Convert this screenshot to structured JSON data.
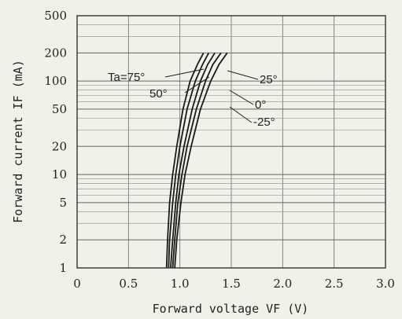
{
  "chart_data": {
    "type": "line",
    "xlabel": "Forward voltage VF (V)",
    "ylabel": "Forward current IF (mA)",
    "xlim": [
      0,
      3.0
    ],
    "ylim": [
      1,
      500
    ],
    "y_scale": "log",
    "grid": true,
    "x_ticks": [
      "0",
      "0.5",
      "1.0",
      "1.5",
      "2.0",
      "2.5",
      "3.0"
    ],
    "y_ticks": [
      "1",
      "2",
      "5",
      "10",
      "20",
      "50",
      "100",
      "200",
      "500"
    ],
    "series": [
      {
        "name": "Ta=75°",
        "x": [
          0.87,
          0.88,
          0.9,
          0.93,
          0.97,
          1.03,
          1.1,
          1.17,
          1.23
        ],
        "y": [
          1,
          2,
          5,
          10,
          20,
          50,
          100,
          150,
          200
        ]
      },
      {
        "name": "50°",
        "x": [
          0.89,
          0.9,
          0.93,
          0.96,
          1.0,
          1.07,
          1.15,
          1.22,
          1.28
        ],
        "y": [
          1,
          2,
          5,
          10,
          20,
          50,
          100,
          150,
          200
        ]
      },
      {
        "name": "25°",
        "x": [
          0.91,
          0.93,
          0.96,
          0.99,
          1.04,
          1.12,
          1.2,
          1.27,
          1.34
        ],
        "y": [
          1,
          2,
          5,
          10,
          20,
          50,
          100,
          150,
          200
        ]
      },
      {
        "name": "0°",
        "x": [
          0.93,
          0.95,
          0.98,
          1.02,
          1.07,
          1.16,
          1.25,
          1.32,
          1.4
        ],
        "y": [
          1,
          2,
          5,
          10,
          20,
          50,
          100,
          150,
          200
        ]
      },
      {
        "name": "-25°",
        "x": [
          0.95,
          0.97,
          1.01,
          1.05,
          1.11,
          1.2,
          1.3,
          1.38,
          1.46
        ],
        "y": [
          1,
          2,
          5,
          10,
          20,
          50,
          100,
          150,
          200
        ]
      }
    ]
  }
}
